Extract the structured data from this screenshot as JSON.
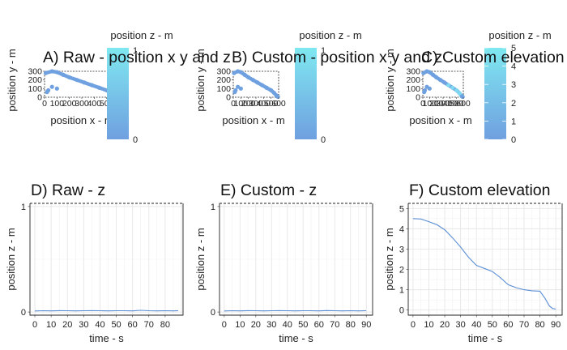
{
  "chart_data": [
    {
      "panel": "A",
      "type": "scatter",
      "title": "A) Raw - position x y and z",
      "xlabel": "position x - m",
      "ylabel": "position y - m",
      "x_ticks": [
        "0",
        "100",
        "200",
        "300",
        "400",
        "500",
        "600"
      ],
      "y_ticks": [
        "0",
        "100",
        "200",
        "300"
      ],
      "xlim": [
        0,
        600
      ],
      "ylim": [
        0,
        300
      ],
      "x": [
        10,
        60,
        100,
        150,
        200,
        260,
        320,
        380,
        440,
        500,
        540,
        570,
        580,
        590,
        100,
        60,
        30,
        20
      ],
      "y": [
        280,
        300,
        290,
        260,
        230,
        200,
        170,
        140,
        110,
        80,
        50,
        20,
        10,
        5,
        100,
        120,
        80,
        60
      ],
      "color_scale": {
        "title": "position z - m",
        "min_label": "0",
        "max_label": "1",
        "low": "#6fa0e0",
        "high": "#7fe8f0"
      }
    },
    {
      "panel": "B",
      "type": "scatter",
      "title": "B) Custom - position x y and z",
      "xlabel": "position x - m",
      "ylabel": "position y - m",
      "x_ticks": [
        "0",
        "100",
        "200",
        "300",
        "400",
        "500",
        "600"
      ],
      "y_ticks": [
        "0",
        "100",
        "200",
        "300"
      ],
      "xlim": [
        0,
        600
      ],
      "ylim": [
        0,
        300
      ],
      "x": [
        10,
        60,
        100,
        150,
        200,
        260,
        320,
        380,
        440,
        500,
        540,
        570,
        580,
        590,
        100,
        60,
        30,
        20
      ],
      "y": [
        280,
        300,
        290,
        260,
        230,
        200,
        170,
        140,
        110,
        80,
        50,
        20,
        10,
        5,
        100,
        120,
        80,
        60
      ],
      "color_scale": {
        "title": "position z - m",
        "min_label": "0",
        "max_label": "1",
        "low": "#6fa0e0",
        "high": "#7fe8f0"
      }
    },
    {
      "panel": "C",
      "type": "scatter",
      "title": "C) Custom elevation",
      "xlabel": "position x - m",
      "ylabel": "position y - m",
      "x_ticks": [
        "0",
        "100",
        "200",
        "300",
        "400",
        "500",
        "600"
      ],
      "y_ticks": [
        "0",
        "100",
        "200",
        "300"
      ],
      "xlim": [
        0,
        600
      ],
      "ylim": [
        0,
        300
      ],
      "x": [
        10,
        60,
        100,
        150,
        200,
        260,
        320,
        380,
        440,
        500,
        540,
        570,
        580,
        590,
        100,
        60,
        30,
        20
      ],
      "y": [
        280,
        300,
        290,
        260,
        230,
        200,
        170,
        140,
        110,
        80,
        50,
        20,
        10,
        5,
        100,
        120,
        80,
        60
      ],
      "color_scale": {
        "title": "position z - m",
        "min_label": "0",
        "max_label": "5",
        "ticks": [
          "0",
          "1",
          "2",
          "3",
          "4",
          "5"
        ],
        "low": "#6fa0e0",
        "high": "#7fe8f0"
      }
    },
    {
      "panel": "D",
      "type": "line",
      "title": "D) Raw - z",
      "xlabel": "time - s",
      "ylabel": "position z - m",
      "x_ticks": [
        "0",
        "10",
        "20",
        "30",
        "40",
        "50",
        "60",
        "70",
        "80"
      ],
      "y_ticks": [
        "0",
        "1"
      ],
      "xlim": [
        -3,
        91
      ],
      "ylim": [
        -0.03,
        1.03
      ],
      "x": [
        0,
        5,
        10,
        15,
        20,
        25,
        30,
        35,
        40,
        45,
        50,
        55,
        60,
        65,
        70,
        75,
        80,
        85,
        88
      ],
      "y": [
        0.01,
        0.012,
        0.011,
        0.013,
        0.012,
        0.011,
        0.012,
        0.013,
        0.012,
        0.011,
        0.012,
        0.012,
        0.011,
        0.016,
        0.012,
        0.011,
        0.012,
        0.011,
        0.012
      ]
    },
    {
      "panel": "E",
      "type": "line",
      "title": "E) Custom - z",
      "xlabel": "time - s",
      "ylabel": "position z - m",
      "x_ticks": [
        "0",
        "10",
        "20",
        "30",
        "40",
        "50",
        "60",
        "70",
        "80",
        "90"
      ],
      "y_ticks": [
        "0",
        "1"
      ],
      "xlim": [
        -3,
        94
      ],
      "ylim": [
        -0.03,
        1.03
      ],
      "x": [
        0,
        5,
        10,
        15,
        20,
        25,
        30,
        35,
        40,
        45,
        50,
        55,
        60,
        65,
        70,
        75,
        80,
        85,
        90
      ],
      "y": [
        0.01,
        0.012,
        0.011,
        0.013,
        0.012,
        0.011,
        0.012,
        0.013,
        0.012,
        0.011,
        0.012,
        0.012,
        0.011,
        0.014,
        0.012,
        0.011,
        0.012,
        0.011,
        0.012
      ]
    },
    {
      "panel": "F",
      "type": "line",
      "title": "F) Custom elevation",
      "xlabel": "time - s",
      "ylabel": "position z - m",
      "x_ticks": [
        "0",
        "10",
        "20",
        "30",
        "40",
        "50",
        "60",
        "70",
        "80",
        "90"
      ],
      "y_ticks": [
        "0",
        "1",
        "2",
        "3",
        "4",
        "5"
      ],
      "xlim": [
        -3,
        94
      ],
      "ylim": [
        -0.25,
        5.25
      ],
      "x": [
        0,
        5,
        10,
        15,
        20,
        25,
        30,
        35,
        40,
        45,
        50,
        55,
        60,
        65,
        70,
        75,
        80,
        83,
        86,
        88,
        90
      ],
      "y": [
        4.5,
        4.48,
        4.35,
        4.2,
        3.95,
        3.55,
        3.1,
        2.6,
        2.2,
        2.05,
        1.9,
        1.6,
        1.25,
        1.1,
        1.0,
        0.95,
        0.93,
        0.6,
        0.2,
        0.08,
        0.05
      ]
    }
  ]
}
